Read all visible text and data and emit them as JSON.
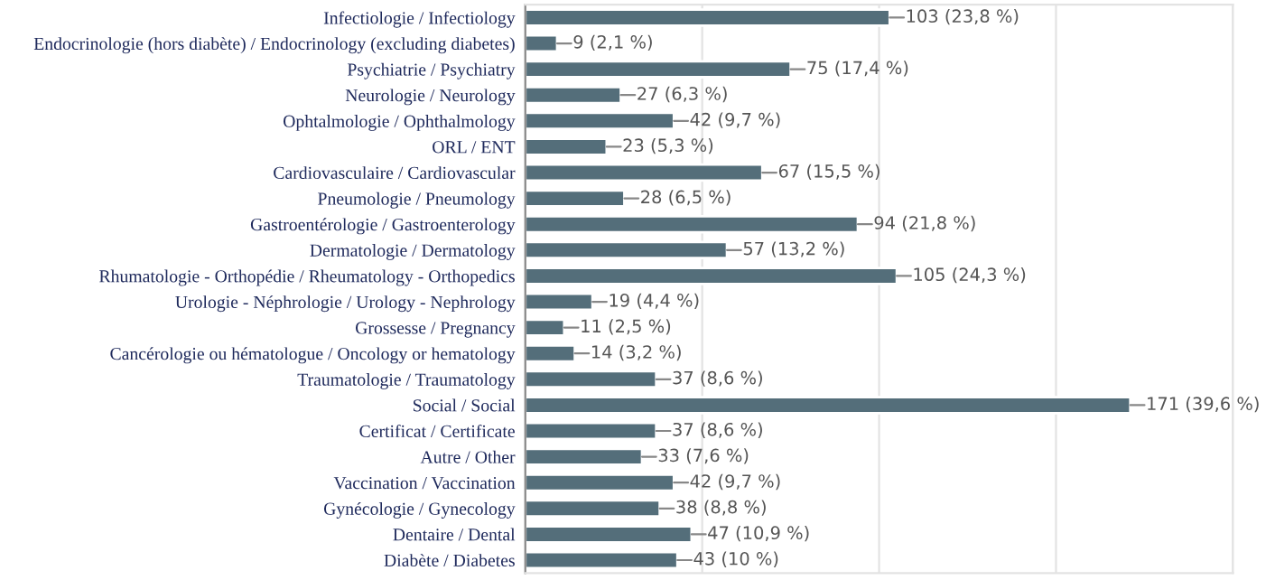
{
  "chart_data": {
    "type": "bar",
    "orientation": "horizontal",
    "categories": [
      "Infectiologie / Infectiology",
      "Endocrinologie (hors diabète) / Endocrinology (excluding diabetes)",
      "Psychiatrie / Psychiatry",
      "Neurologie / Neurology",
      "Ophtalmologie / Ophthalmology",
      "ORL / ENT",
      "Cardiovasculaire / Cardiovascular",
      "Pneumologie / Pneumology",
      "Gastroentérologie / Gastroenterology",
      "Dermatologie / Dermatology",
      "Rhumatologie - Orthopédie / Rheumatology - Orthopedics",
      "Urologie - Néphrologie / Urology - Nephrology",
      "Grossesse / Pregnancy",
      "Cancérologie ou hématologue / Oncology or hematology",
      "Traumatologie / Traumatology",
      "Social / Social",
      "Certificat / Certificate",
      "Autre / Other",
      "Vaccination / Vaccination",
      "Gynécologie / Gynecology",
      "Dentaire / Dental",
      "Diabète / Diabetes"
    ],
    "values": [
      103,
      9,
      75,
      27,
      42,
      23,
      67,
      28,
      94,
      57,
      105,
      19,
      11,
      14,
      37,
      171,
      37,
      33,
      42,
      38,
      47,
      43
    ],
    "value_labels": [
      "103 (23,8 %)",
      "9 (2,1 %)",
      "75 (17,4 %)",
      "27 (6,3 %)",
      "42 (9,7 %)",
      "23 (5,3 %)",
      "67 (15,5 %)",
      "28 (6,5 %)",
      "94 (21,8 %)",
      "57 (13,2 %)",
      "105 (24,3 %)",
      "19 (4,4 %)",
      "11 (2,5 %)",
      "14 (3,2 %)",
      "37 (8,6 %)",
      "171 (39,6 %)",
      "37 (8,6 %)",
      "33 (7,6 %)",
      "42 (9,7 %)",
      "38 (8,8 %)",
      "47 (10,9 %)",
      "43 (10 %)"
    ],
    "color": "#546e7a",
    "xlim": [
      0,
      200
    ],
    "xticks": [
      {
        "value": 0,
        "label": null
      },
      {
        "value": 50,
        "label": null
      },
      {
        "value": 100,
        "label": null
      },
      {
        "value": 150,
        "label": null
      },
      {
        "value": 200,
        "label": null
      }
    ],
    "grid": "x",
    "tick_labels": "y"
  }
}
